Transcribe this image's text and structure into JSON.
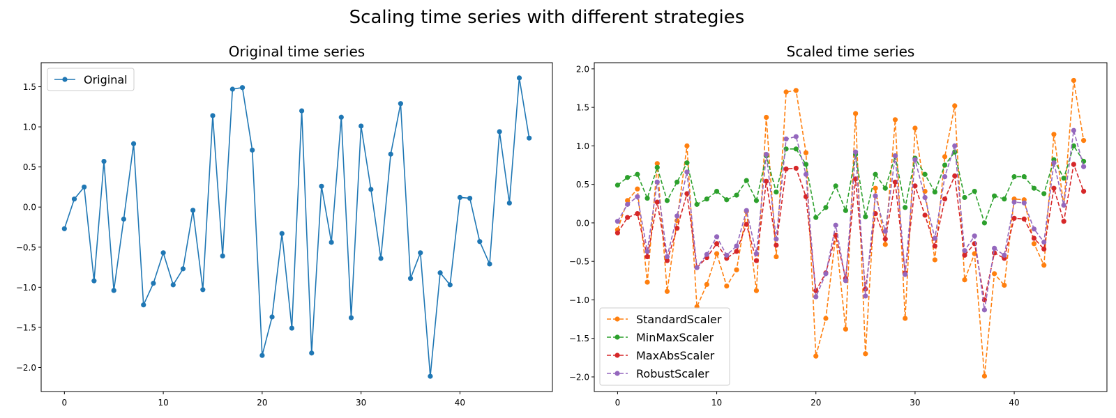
{
  "figure_title": "Scaling time series with different strategies",
  "chart_data": [
    {
      "type": "line",
      "title": "Original time series",
      "xlabel": "",
      "ylabel": "",
      "xlim": [
        -2.35,
        49.35
      ],
      "ylim": [
        -2.3,
        1.8
      ],
      "xticks": [
        0,
        10,
        20,
        30,
        40
      ],
      "xtick_labels": [
        "0",
        "10",
        "20",
        "30",
        "40"
      ],
      "yticks": [
        -2.0,
        -1.5,
        -1.0,
        -0.5,
        0.0,
        0.5,
        1.0,
        1.5
      ],
      "ytick_labels": [
        "−2.0",
        "−1.5",
        "−1.0",
        "−0.5",
        "0.0",
        "0.5",
        "1.0",
        "1.5"
      ],
      "grid": false,
      "legend_position": "upper-left",
      "series": [
        {
          "name": "Original",
          "color": "#1f77b4",
          "linestyle": "solid",
          "marker": "circle",
          "x": [
            0,
            1,
            2,
            3,
            4,
            5,
            6,
            7,
            8,
            9,
            10,
            11,
            12,
            13,
            14,
            15,
            16,
            17,
            18,
            19,
            20,
            21,
            22,
            23,
            24,
            25,
            26,
            27,
            28,
            29,
            30,
            31,
            32,
            33,
            34,
            35,
            36,
            37,
            38,
            39,
            40,
            41,
            42,
            43,
            44,
            45,
            46,
            47
          ],
          "values": [
            -0.27,
            0.1,
            0.25,
            -0.92,
            0.57,
            -1.04,
            -0.15,
            0.79,
            -1.22,
            -0.95,
            -0.57,
            -0.97,
            -0.77,
            -0.04,
            -1.03,
            1.14,
            -0.61,
            1.47,
            1.49,
            0.71,
            -1.85,
            -1.37,
            -0.33,
            -1.51,
            1.2,
            -1.82,
            0.26,
            -0.44,
            1.12,
            -1.38,
            1.01,
            0.22,
            -0.64,
            0.66,
            1.29,
            -0.89,
            -0.57,
            -2.11,
            -0.82,
            -0.97,
            0.12,
            0.11,
            -0.43,
            -0.71,
            0.94,
            0.05,
            1.61,
            0.86
          ]
        }
      ]
    },
    {
      "type": "line",
      "title": "Scaled time series",
      "xlabel": "",
      "ylabel": "",
      "xlim": [
        -2.35,
        49.35
      ],
      "ylim": [
        -2.19,
        2.08
      ],
      "xticks": [
        0,
        10,
        20,
        30,
        40
      ],
      "xtick_labels": [
        "0",
        "10",
        "20",
        "30",
        "40"
      ],
      "yticks": [
        -2.0,
        -1.5,
        -1.0,
        -0.5,
        0.0,
        0.5,
        1.0,
        1.5,
        2.0
      ],
      "ytick_labels": [
        "−2.0",
        "−1.5",
        "−1.0",
        "−0.5",
        "0.0",
        "0.5",
        "1.0",
        "1.5",
        "2.0"
      ],
      "grid": false,
      "legend_position": "lower-left",
      "series": [
        {
          "name": "StandardScaler",
          "color": "#ff7f0e",
          "linestyle": "dashed",
          "marker": "circle",
          "x": [
            0,
            1,
            2,
            3,
            4,
            5,
            6,
            7,
            8,
            9,
            10,
            11,
            12,
            13,
            14,
            15,
            16,
            17,
            18,
            19,
            20,
            21,
            22,
            23,
            24,
            25,
            26,
            27,
            28,
            29,
            30,
            31,
            32,
            33,
            34,
            35,
            36,
            37,
            38,
            39,
            40,
            41,
            42,
            43,
            44,
            45,
            46,
            47
          ],
          "values": [
            -0.09,
            0.29,
            0.44,
            -0.77,
            0.77,
            -0.89,
            0.03,
            1.0,
            -1.09,
            -0.8,
            -0.4,
            -0.82,
            -0.61,
            0.15,
            -0.88,
            1.37,
            -0.44,
            1.7,
            1.72,
            0.91,
            -1.73,
            -1.24,
            -0.16,
            -1.38,
            1.42,
            -1.7,
            0.45,
            -0.28,
            1.34,
            -1.24,
            1.23,
            0.41,
            -0.48,
            0.86,
            1.52,
            -0.74,
            -0.4,
            -1.99,
            -0.66,
            -0.81,
            0.31,
            0.3,
            -0.27,
            -0.55,
            1.15,
            0.23,
            1.85,
            1.07
          ]
        },
        {
          "name": "MinMaxScaler",
          "color": "#2ca02c",
          "linestyle": "dashed",
          "marker": "circle",
          "x": [
            0,
            1,
            2,
            3,
            4,
            5,
            6,
            7,
            8,
            9,
            10,
            11,
            12,
            13,
            14,
            15,
            16,
            17,
            18,
            19,
            20,
            21,
            22,
            23,
            24,
            25,
            26,
            27,
            28,
            29,
            30,
            31,
            32,
            33,
            34,
            35,
            36,
            37,
            38,
            39,
            40,
            41,
            42,
            43,
            44,
            45,
            46,
            47
          ],
          "values": [
            0.49,
            0.59,
            0.63,
            0.32,
            0.72,
            0.29,
            0.53,
            0.78,
            0.24,
            0.31,
            0.41,
            0.3,
            0.36,
            0.55,
            0.29,
            0.87,
            0.4,
            0.96,
            0.96,
            0.76,
            0.07,
            0.2,
            0.48,
            0.16,
            0.89,
            0.08,
            0.63,
            0.45,
            0.87,
            0.2,
            0.84,
            0.63,
            0.4,
            0.75,
            0.92,
            0.33,
            0.41,
            0.0,
            0.35,
            0.31,
            0.6,
            0.6,
            0.45,
            0.38,
            0.82,
            0.58,
            1.0,
            0.8
          ]
        },
        {
          "name": "MaxAbsScaler",
          "color": "#d62728",
          "linestyle": "dashed",
          "marker": "circle",
          "x": [
            0,
            1,
            2,
            3,
            4,
            5,
            6,
            7,
            8,
            9,
            10,
            11,
            12,
            13,
            14,
            15,
            16,
            17,
            18,
            19,
            20,
            21,
            22,
            23,
            24,
            25,
            26,
            27,
            28,
            29,
            30,
            31,
            32,
            33,
            34,
            35,
            36,
            37,
            38,
            39,
            40,
            41,
            42,
            43,
            44,
            45,
            46,
            47
          ],
          "values": [
            -0.13,
            0.07,
            0.12,
            -0.44,
            0.27,
            -0.49,
            -0.07,
            0.38,
            -0.58,
            -0.45,
            -0.27,
            -0.46,
            -0.37,
            -0.02,
            -0.49,
            0.54,
            -0.29,
            0.7,
            0.71,
            0.34,
            -0.88,
            -0.65,
            -0.16,
            -0.72,
            0.57,
            -0.86,
            0.12,
            -0.21,
            0.53,
            -0.65,
            0.48,
            0.1,
            -0.3,
            0.31,
            0.61,
            -0.42,
            -0.27,
            -1.0,
            -0.39,
            -0.46,
            0.06,
            0.05,
            -0.2,
            -0.34,
            0.45,
            0.02,
            0.76,
            0.41
          ]
        },
        {
          "name": "RobustScaler",
          "color": "#9467bd",
          "linestyle": "dashed",
          "marker": "circle",
          "x": [
            0,
            1,
            2,
            3,
            4,
            5,
            6,
            7,
            8,
            9,
            10,
            11,
            12,
            13,
            14,
            15,
            16,
            17,
            18,
            19,
            20,
            21,
            22,
            23,
            24,
            25,
            26,
            27,
            28,
            29,
            30,
            31,
            32,
            33,
            34,
            35,
            36,
            37,
            38,
            39,
            40,
            41,
            42,
            43,
            44,
            45,
            46,
            47
          ],
          "values": [
            0.02,
            0.24,
            0.34,
            -0.37,
            0.53,
            -0.44,
            0.09,
            0.66,
            -0.58,
            -0.41,
            -0.18,
            -0.42,
            -0.3,
            0.16,
            -0.4,
            0.89,
            -0.21,
            1.09,
            1.12,
            0.63,
            -0.96,
            -0.66,
            -0.03,
            -0.75,
            0.92,
            -0.95,
            0.35,
            -0.11,
            0.87,
            -0.67,
            0.82,
            0.33,
            -0.2,
            0.6,
            1.0,
            -0.36,
            -0.17,
            -1.13,
            -0.33,
            -0.42,
            0.27,
            0.26,
            -0.08,
            -0.25,
            0.78,
            0.23,
            1.2,
            0.73
          ]
        }
      ]
    }
  ]
}
